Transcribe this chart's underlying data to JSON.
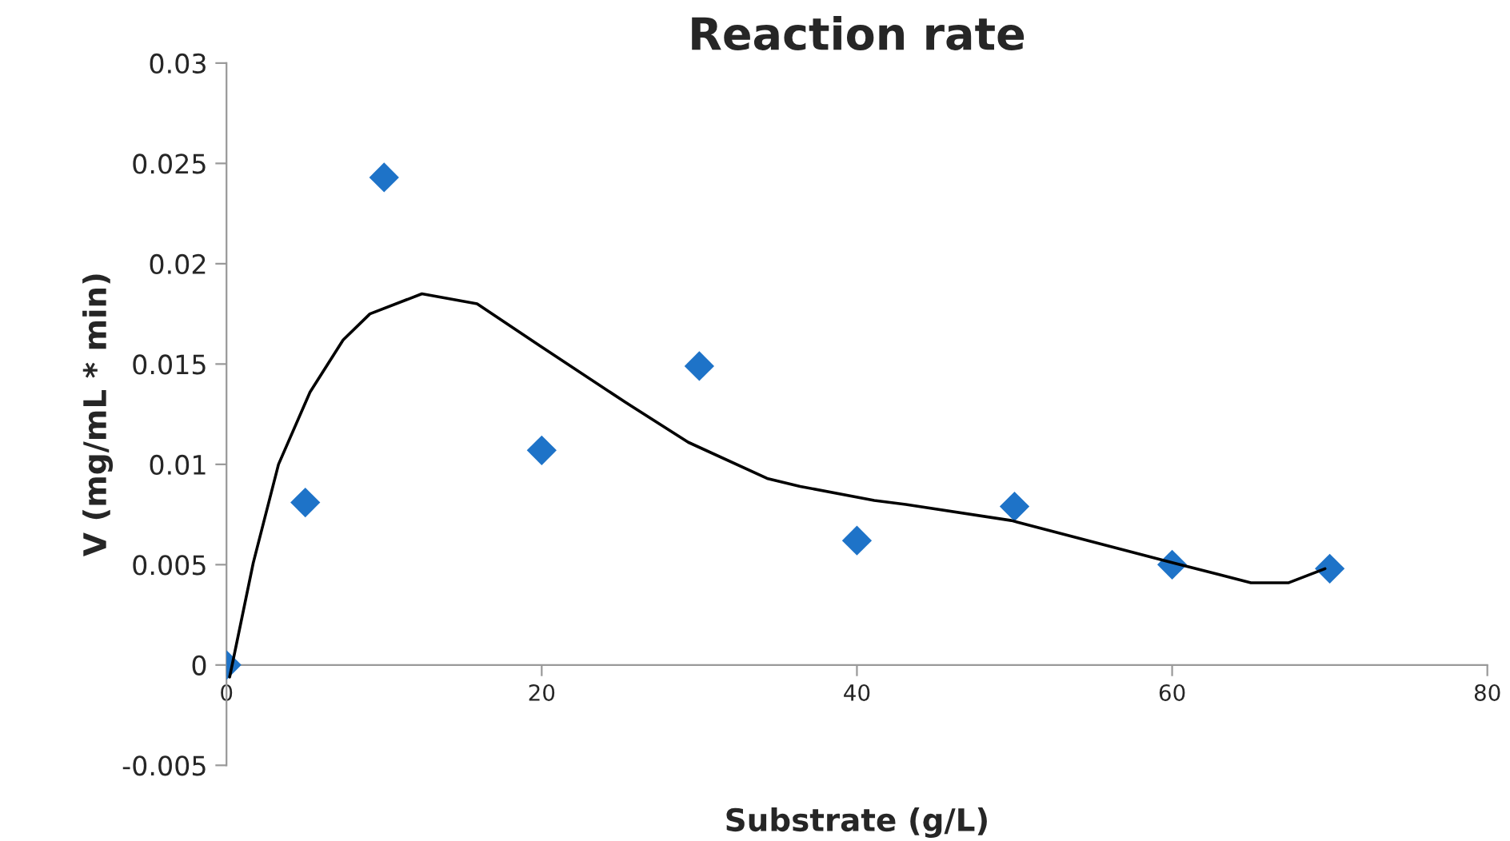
{
  "chart_data": {
    "type": "scatter",
    "title": "Reaction rate",
    "xlabel": "Substrate (g/L)",
    "ylabel": "V (mg/mL * min)",
    "xlim": [
      0,
      80
    ],
    "xticks": [
      0,
      20,
      40,
      60,
      80
    ],
    "ylim": [
      -0.005,
      0.03
    ],
    "yticks": [
      -0.005,
      0,
      0.005,
      0.01,
      0.015,
      0.02,
      0.025,
      0.03
    ],
    "grid": false,
    "legend": false,
    "marker": "diamond",
    "series": [
      {
        "color": "#1e73c8",
        "x": [
          0,
          5,
          10,
          20,
          30,
          40,
          50,
          60,
          70
        ],
        "values": [
          0,
          0.0081,
          0.0243,
          0.0107,
          0.0149,
          0.0062,
          0.0079,
          0.005,
          0.0048
        ]
      },
      {
        "type": "line",
        "color": "#000000",
        "marker": "none",
        "line_style": "solid",
        "x": [
          0.2,
          1.7,
          3.3,
          5.3,
          7.4,
          9.1,
          12.4,
          15.9,
          19.9,
          25.3,
          29.3,
          34.3,
          36.4,
          41.1,
          43.1,
          49.8,
          56.6,
          60,
          65,
          67.4,
          69.7
        ],
        "values": [
          -0.0006,
          0.0051,
          0.01,
          0.0136,
          0.0162,
          0.0175,
          0.0185,
          0.018,
          0.0159,
          0.0131,
          0.0111,
          0.0093,
          0.0089,
          0.0082,
          0.008,
          0.0072,
          0.0058,
          0.0051,
          0.0041,
          0.0041,
          0.0048
        ]
      }
    ]
  }
}
